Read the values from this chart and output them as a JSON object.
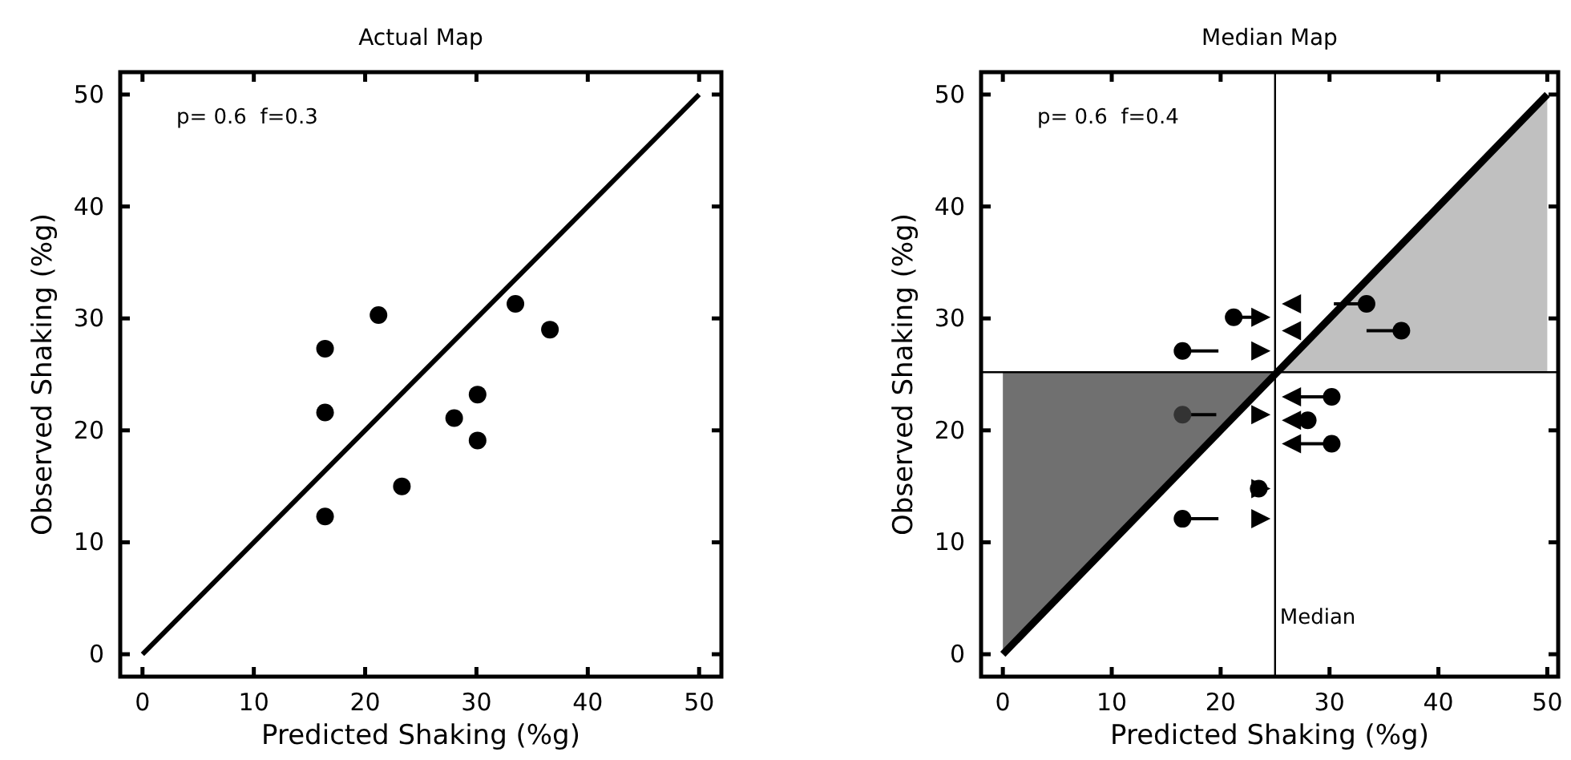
{
  "chart_data": [
    {
      "type": "scatter",
      "title": "Actual Map",
      "xlabel": "Predicted Shaking (%g)",
      "ylabel": "Observed Shaking (%g)",
      "xlim": [
        -2,
        52
      ],
      "ylim": [
        -2,
        52
      ],
      "xticks": [
        0,
        10,
        20,
        30,
        40,
        50
      ],
      "yticks": [
        0,
        10,
        20,
        30,
        40,
        50
      ],
      "annotations": [
        "p= 0.6  f=0.3"
      ],
      "series": [
        {
          "type": "line",
          "color": "#000000",
          "x": [
            0,
            50
          ],
          "values": [
            0,
            50
          ]
        },
        {
          "color": "#000000",
          "marker": "circle",
          "x": [
            16.4,
            16.4,
            16.4,
            21.2,
            23.3,
            28.0,
            30.1,
            30.1,
            33.5,
            36.6
          ],
          "values": [
            27.3,
            21.6,
            12.3,
            30.3,
            15.0,
            21.1,
            23.2,
            19.1,
            31.3,
            29.0
          ]
        }
      ]
    },
    {
      "type": "scatter",
      "title": "Median Map",
      "xlabel": "Predicted Shaking (%g)",
      "ylabel": "Observed Shaking (%g)",
      "xlim": [
        -2,
        51
      ],
      "ylim": [
        -2,
        52
      ],
      "xticks": [
        0,
        10,
        20,
        30,
        40,
        50
      ],
      "yticks": [
        0,
        10,
        20,
        30,
        40,
        50
      ],
      "annotations": [
        "p= 0.6  f=0.4"
      ],
      "ref_lines": [
        {
          "axis": "x",
          "value": 25,
          "label": "Median"
        },
        {
          "axis": "y",
          "value": 25.2
        }
      ],
      "series": [
        {
          "type": "line",
          "color": "#707070",
          "x": [
            0,
            25
          ],
          "values": [
            null,
            null
          ],
          "lower": [
            0,
            25
          ],
          "upper": [
            25.2,
            25.2
          ]
        },
        {
          "type": "line",
          "color": "#c0c0c0",
          "x": [
            25,
            50
          ],
          "values": [
            null,
            null
          ],
          "lower": [
            25.2,
            25.2
          ],
          "upper": [
            25,
            50
          ]
        },
        {
          "type": "line",
          "color": "#000000",
          "x": [
            0,
            50
          ],
          "values": [
            0,
            50
          ]
        },
        {
          "color": "#000000",
          "marker": "circle",
          "colors": [
            "#000000",
            "#000000",
            "#333333",
            "#000000",
            "#000000",
            "#000000",
            "#000000",
            "#000000",
            "#000000",
            "#000000"
          ],
          "x": [
            16.5,
            21.2,
            16.5,
            16.5,
            23.5,
            28.0,
            30.2,
            30.2,
            33.4,
            36.6
          ],
          "values": [
            27.1,
            30.1,
            21.4,
            12.1,
            14.8,
            20.9,
            23.0,
            18.8,
            31.3,
            28.9
          ],
          "xerrors": [
            [
              16.5,
              19.8
            ],
            [
              21.2,
              23.7
            ],
            [
              16.5,
              19.6
            ],
            [
              16.5,
              19.8
            ],
            null,
            [
              26.5,
              28.0
            ],
            [
              26.3,
              30.2
            ],
            [
              26.3,
              30.2
            ],
            [
              30.4,
              33.4
            ],
            [
              33.4,
              36.6
            ]
          ]
        },
        {
          "color": "#000000",
          "marker": "triangle",
          "x": [
            23.7,
            23.7,
            23.7,
            23.7,
            23.7,
            26.5,
            26.5,
            26.5,
            26.5,
            26.5
          ],
          "values": [
            30.1,
            27.1,
            21.4,
            14.8,
            12.1,
            31.3,
            28.9,
            23.0,
            20.9,
            18.8
          ]
        }
      ]
    }
  ]
}
